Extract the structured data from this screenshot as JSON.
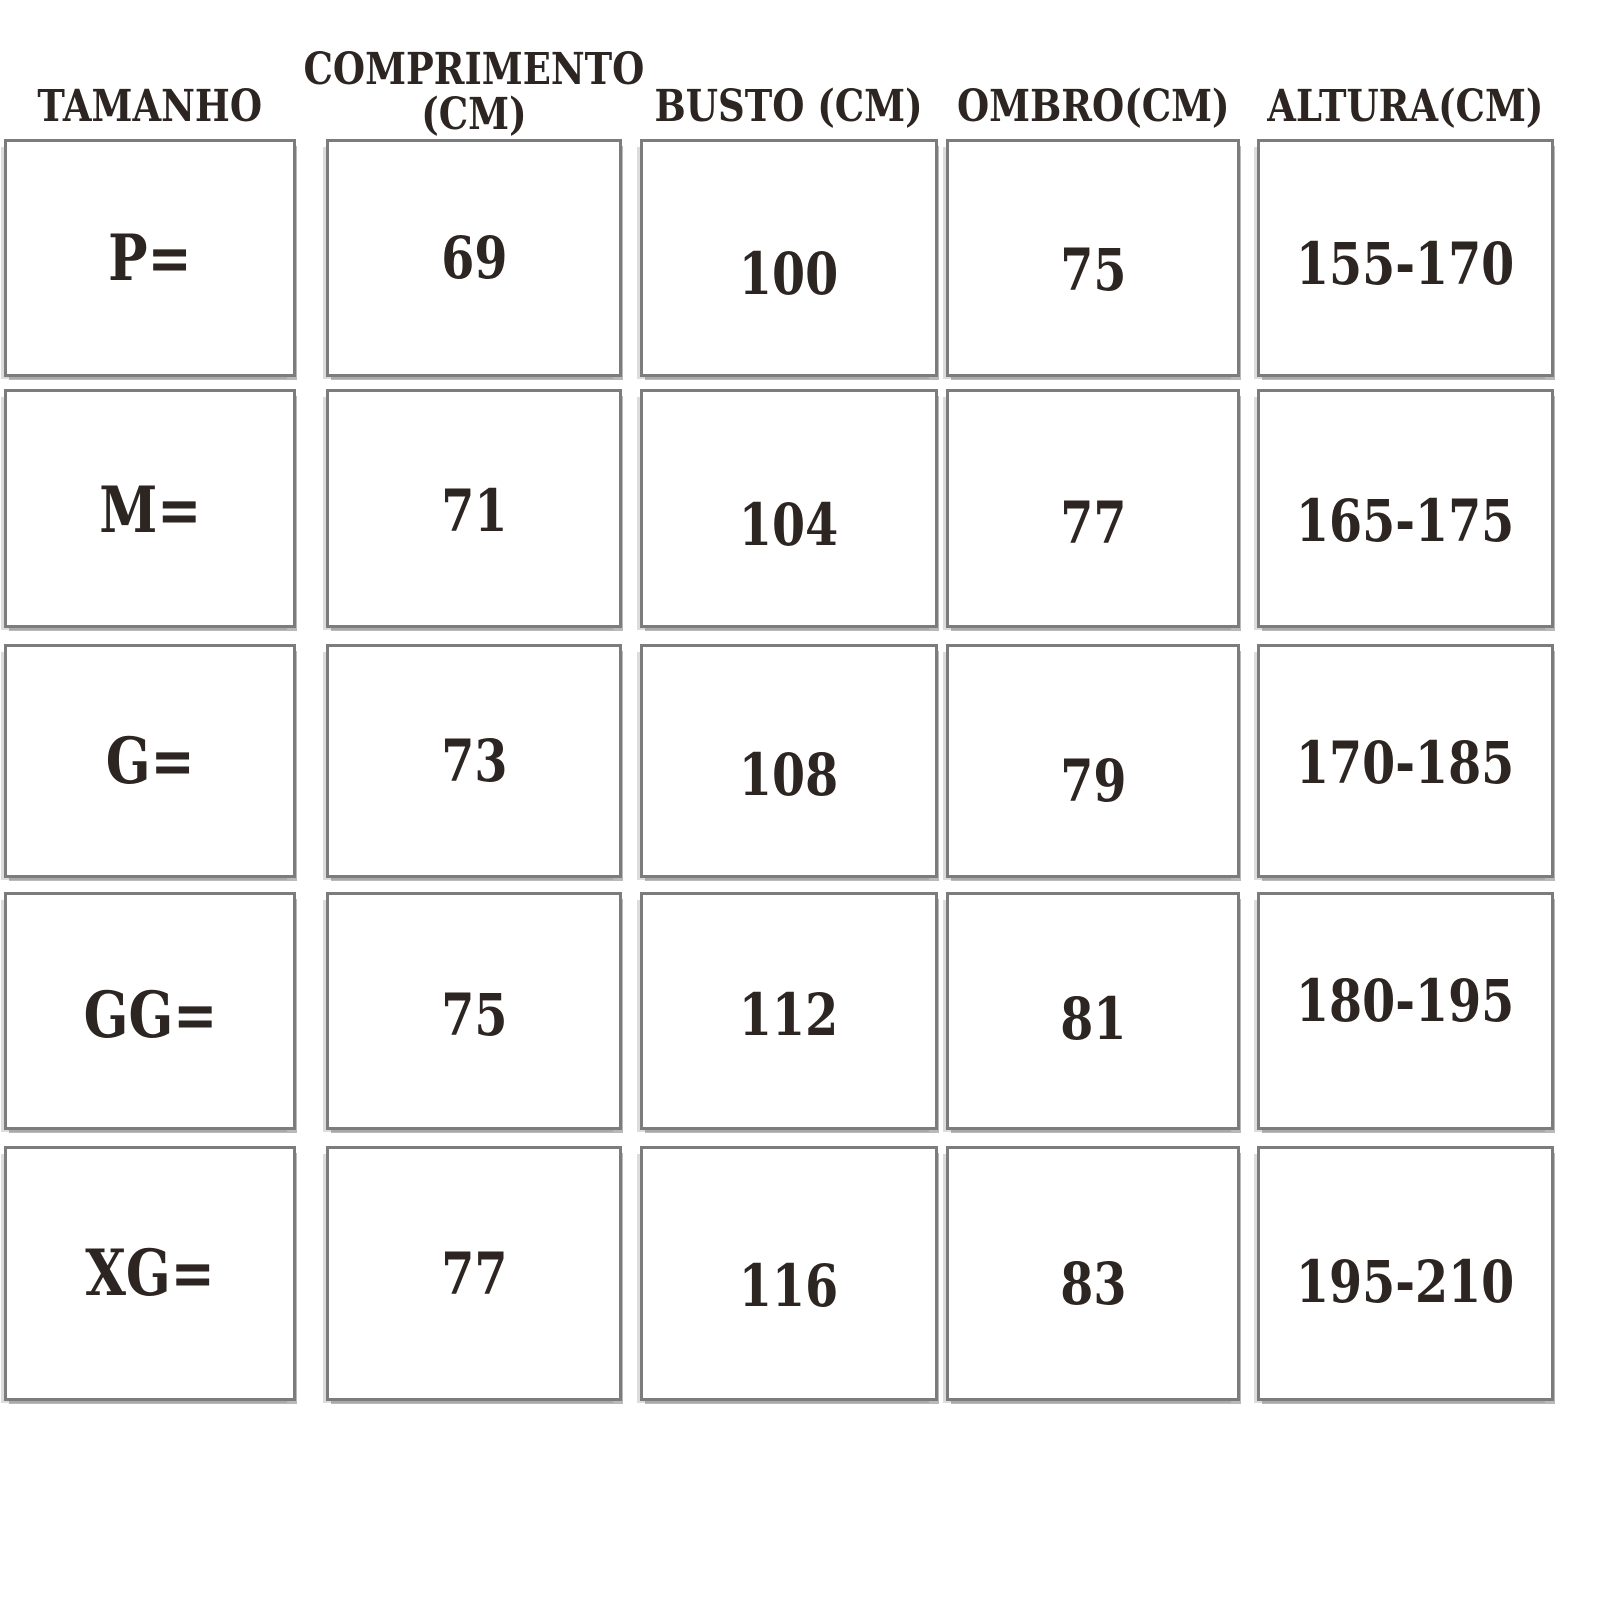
{
  "colors": {
    "text": "#2d2521",
    "cell_border": "#7c7c7c",
    "cell_background": "#ffffff",
    "page_background": "#ffffff"
  },
  "size_chart": {
    "headers": [
      {
        "id": "tamanho",
        "label": "TAMANHO",
        "lines": [
          "TAMANHO"
        ]
      },
      {
        "id": "comprimento",
        "label": "COMPRIMENTO (CM)",
        "lines": [
          "COMPRIMENTO",
          "(CM)"
        ]
      },
      {
        "id": "busto",
        "label": "BUSTO (CM)",
        "lines": [
          "BUSTO (CM)"
        ]
      },
      {
        "id": "ombro",
        "label": "OMBRO(CM)",
        "lines": [
          "OMBRO(CM)"
        ]
      },
      {
        "id": "altura",
        "label": "ALTURA(CM)",
        "lines": [
          "ALTURA(CM)"
        ]
      }
    ],
    "rows": [
      {
        "tamanho": "P=",
        "comprimento": "69",
        "busto": "100",
        "ombro": "75",
        "altura": "155-170"
      },
      {
        "tamanho": "M=",
        "comprimento": "71",
        "busto": "104",
        "ombro": "77",
        "altura": "165-175"
      },
      {
        "tamanho": "G=",
        "comprimento": "73",
        "busto": "108",
        "ombro": "79",
        "altura": "170-185"
      },
      {
        "tamanho": "GG=",
        "comprimento": "75",
        "busto": "112",
        "ombro": "81",
        "altura": "180-195"
      },
      {
        "tamanho": "XG=",
        "comprimento": "77",
        "busto": "116",
        "ombro": "83",
        "altura": "195-210"
      }
    ]
  },
  "chart_data": {
    "type": "table",
    "title": "Size chart (Portuguese)",
    "columns": [
      "TAMANHO",
      "COMPRIMENTO (CM)",
      "BUSTO (CM)",
      "OMBRO(CM)",
      "ALTURA(CM)"
    ],
    "rows": [
      [
        "P=",
        69,
        100,
        75,
        "155-170"
      ],
      [
        "M=",
        71,
        104,
        77,
        "165-175"
      ],
      [
        "G=",
        73,
        108,
        79,
        "170-185"
      ],
      [
        "GG=",
        75,
        112,
        81,
        "180-195"
      ],
      [
        "XG=",
        77,
        116,
        83,
        "195-210"
      ]
    ],
    "layout_hints": {
      "grid": "separated boxed cells with gray borders",
      "header_position": "top, outside cells",
      "text_align": "center"
    }
  }
}
